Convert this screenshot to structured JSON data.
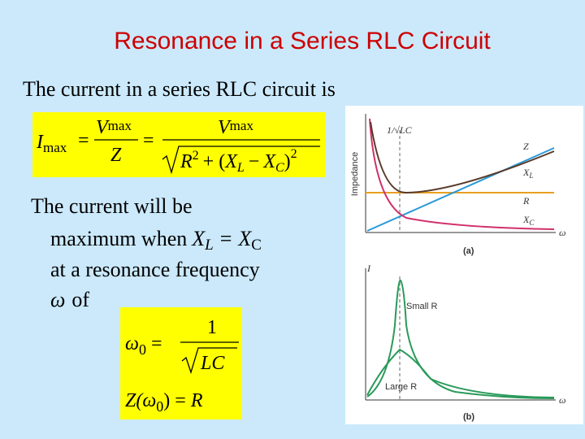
{
  "title": "Resonance in a Series RLC Circuit",
  "intro": "The current in a series RLC circuit is",
  "equation_1": {
    "current": "I",
    "max": "max",
    "equals": "=",
    "voltage": "V",
    "impedance": "Z",
    "radicand": {
      "r": "R",
      "square": "2",
      "plus_open": "+ (",
      "x": "X",
      "l": "L",
      "minus": "−",
      "c": "C",
      "close": ")"
    }
  },
  "body": {
    "line_1": "The current will be",
    "line_2": "maximum when",
    "x": "X",
    "l": "L",
    "equals": "=",
    "c": "C",
    "line_3": "at a resonance frequency",
    "omega": "ω",
    "of": "of"
  },
  "equation_2": {
    "omega": "ω",
    "zero": "0",
    "equals": "=",
    "one": "1",
    "lc": "LC",
    "z_open": "Z(",
    "close": ")",
    "r": "R"
  },
  "figure": {
    "panel_a": {
      "y_label": "Impedance",
      "resonance": "1/√LC",
      "z": "Z",
      "x": "X",
      "l": "L",
      "r": "R",
      "c": "C",
      "x_axis": "ω",
      "tag": "(a)"
    },
    "panel_b": {
      "y_label": "I",
      "small_r": "Small R",
      "large_r": "Large R",
      "x_axis": "ω",
      "tag": "(b)"
    }
  }
}
